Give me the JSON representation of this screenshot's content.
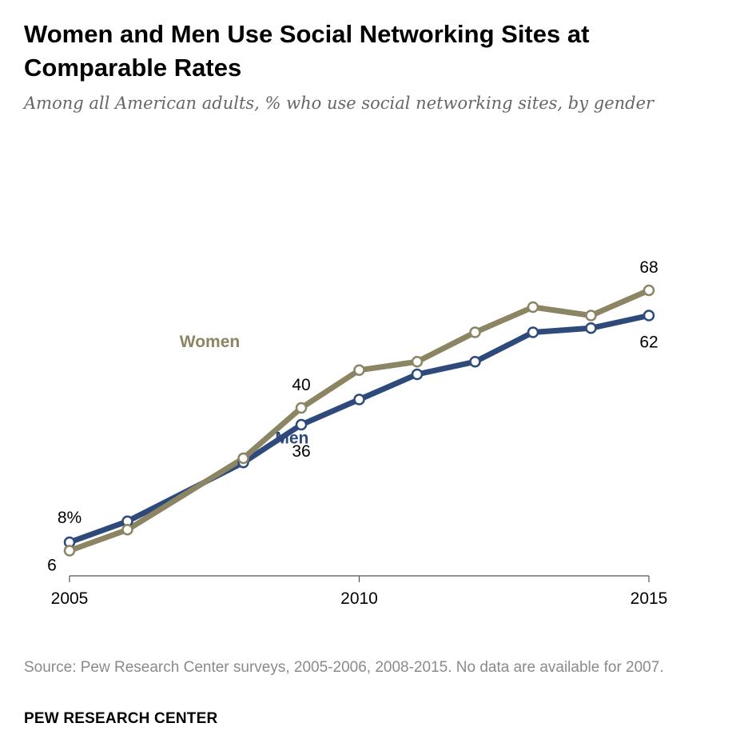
{
  "title": "Women and Men Use Social Networking Sites at Comparable Rates",
  "subtitle": "Among all American adults, % who use social networking sites, by gender",
  "source": "Source: Pew Research Center surveys, 2005-2006, 2008-2015.  No data are available for 2007.",
  "brand": "PEW RESEARCH CENTER",
  "colors": {
    "women": "#8c8563",
    "men": "#2e4a7a",
    "axis": "#555555"
  },
  "chart_data": {
    "type": "line",
    "title": "Women and Men Use Social Networking Sites at Comparable Rates",
    "xlabel": "",
    "ylabel": "",
    "x_ticks": [
      2005,
      2010,
      2015
    ],
    "x_tick_labels": [
      "2005",
      "2010",
      "2015"
    ],
    "xlim": [
      2005,
      2015
    ],
    "ylim": [
      0,
      80
    ],
    "grid": false,
    "legend": "inline labels",
    "series": [
      {
        "name": "Women",
        "x": [
          2005,
          2006,
          2008,
          2009,
          2010,
          2011,
          2012,
          2013,
          2014,
          2015
        ],
        "values": [
          6,
          11,
          28,
          40,
          49,
          51,
          58,
          64,
          62,
          68
        ]
      },
      {
        "name": "Men",
        "x": [
          2005,
          2006,
          2008,
          2009,
          2010,
          2011,
          2012,
          2013,
          2014,
          2015
        ],
        "values": [
          8,
          13,
          27,
          36,
          42,
          48,
          51,
          58,
          59,
          62
        ]
      }
    ],
    "annotations": [
      {
        "series": "Men",
        "x": 2005,
        "text": "8%",
        "place": "above"
      },
      {
        "series": "Women",
        "x": 2005,
        "text": "6",
        "place": "below-left"
      },
      {
        "series": "Women",
        "x": 2009,
        "text": "40",
        "place": "above"
      },
      {
        "series": "Men",
        "x": 2009,
        "text": "36",
        "place": "below"
      },
      {
        "series": "Women",
        "x": 2015,
        "text": "68",
        "place": "above"
      },
      {
        "series": "Men",
        "x": 2015,
        "text": "62",
        "place": "below"
      }
    ]
  }
}
